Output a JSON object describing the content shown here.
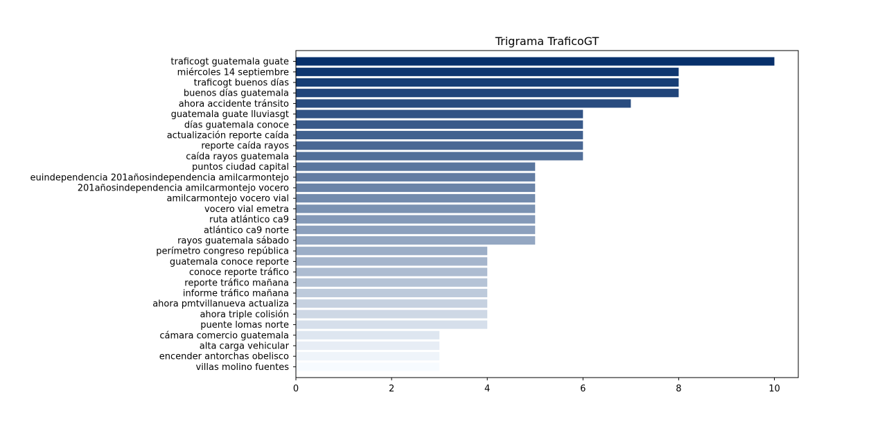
{
  "chart_data": {
    "type": "bar",
    "orientation": "horizontal",
    "title": "Trigrama TraficoGT",
    "xlabel": "",
    "ylabel": "",
    "xlim": [
      0,
      10.5
    ],
    "xticks": [
      "0",
      "2",
      "4",
      "6",
      "8",
      "10"
    ],
    "grid": false,
    "categories": [
      "traficogt guatemala guate",
      "miércoles 14 septiembre",
      "traficogt buenos días",
      "buenos días guatemala",
      "ahora accidente tránsito",
      "guatemala guate lluviasgt",
      "días guatemala conoce",
      "actualización reporte caída",
      "reporte caída rayos",
      "caída rayos guatemala",
      "puntos ciudad capital",
      "euindependencia 201añosindependencia amilcarmontejo",
      "201añosindependencia amilcarmontejo vocero",
      "amilcarmontejo vocero vial",
      "vocero vial emetra",
      "ruta atlántico ca9",
      "atlántico ca9 norte",
      "rayos guatemala sábado",
      "perímetro congreso república",
      "guatemala conoce reporte",
      "conoce reporte tráfico",
      "reporte tráfico mañana",
      "informe tráfico mañana",
      "ahora pmtvillanueva actualiza",
      "ahora triple colisión",
      "puente lomas norte",
      "cámara comercio guatemala",
      "alta carga vehicular",
      "encender antorchas obelisco",
      "villas molino fuentes"
    ],
    "values": [
      10,
      8,
      8,
      8,
      7,
      6,
      6,
      6,
      6,
      6,
      5,
      5,
      5,
      5,
      5,
      5,
      5,
      5,
      4,
      4,
      4,
      4,
      4,
      4,
      4,
      4,
      3,
      3,
      3,
      3
    ],
    "colormap": "Blues (dark to light)",
    "color_dark": "#08306b",
    "color_light": "#f7fbff"
  }
}
